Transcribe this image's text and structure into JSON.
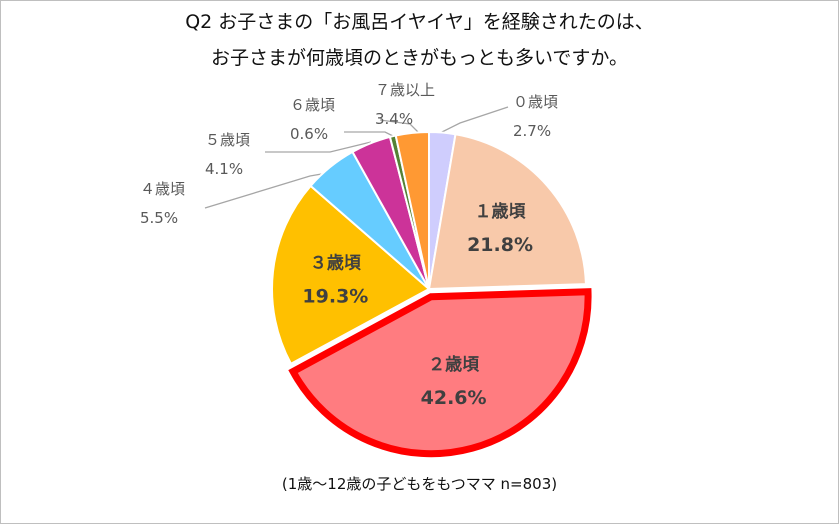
{
  "chart_data": {
    "type": "pie",
    "title_line1": "Q2 お子さまの「お風呂イヤイヤ」を経験されたのは、",
    "title_line2": "お子さまが何歳頃のときがもっとも多いですか。",
    "note": "(1歳～12歳の子どもをもつママ n=803)",
    "slices": [
      {
        "label": "０歳頃",
        "value": 2.7,
        "value_text": "2.7%",
        "color": "#cfcdfd"
      },
      {
        "label": "１歳頃",
        "value": 21.8,
        "value_text": "21.8%",
        "color": "#f8c9aa"
      },
      {
        "label": "２歳頃",
        "value": 42.6,
        "value_text": "42.6%",
        "color": "#ff7c80",
        "highlight": true,
        "highlight_color": "#ff0000"
      },
      {
        "label": "３歳頃",
        "value": 19.3,
        "value_text": "19.3%",
        "color": "#ffc000"
      },
      {
        "label": "４歳頃",
        "value": 5.5,
        "value_text": "5.5%",
        "color": "#66ccff"
      },
      {
        "label": "５歳頃",
        "value": 4.1,
        "value_text": "4.1%",
        "color": "#cc3399"
      },
      {
        "label": "６歳頃",
        "value": 0.6,
        "value_text": "0.6%",
        "color": "#548235"
      },
      {
        "label": "７歳以上",
        "value": 3.4,
        "value_text": "3.4%",
        "color": "#ff9933"
      }
    ],
    "start_angle_deg": 0,
    "direction": "clockwise",
    "label_color": "#404040",
    "outer_label_color": "#595959",
    "leader_line_color": "#a6a6a6"
  }
}
